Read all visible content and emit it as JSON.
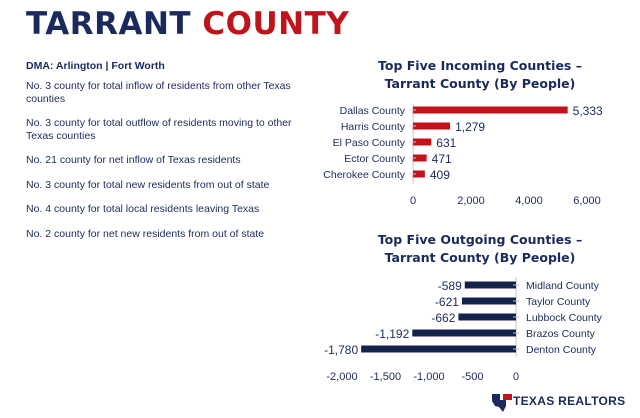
{
  "header": {
    "title_part1": "TARRANT",
    "title_part2": "COUNTY"
  },
  "facts": {
    "dma": "DMA: Arlington | Fort Worth",
    "items": [
      "No. 3 county for total inflow of residents from other Texas counties",
      "No. 3 county for total outflow of residents moving to other Texas counties",
      "No. 21 county for net inflow of Texas residents",
      "No. 3 county for total new residents from out of state",
      "No. 4 county for total local residents leaving Texas",
      "No. 2 county for net new residents from out of state"
    ]
  },
  "chart_data": [
    {
      "type": "bar",
      "orientation": "horizontal",
      "title_line1": "Top Five Incoming Counties –",
      "title_line2": "Tarrant County (By People)",
      "categories": [
        "Dallas County",
        "Harris County",
        "El Paso County",
        "Ector County",
        "Cherokee County"
      ],
      "values": [
        5333,
        1279,
        631,
        471,
        409
      ],
      "value_labels": [
        "5,333",
        "1,279",
        "631",
        "471",
        "409"
      ],
      "xlim": [
        0,
        6000
      ],
      "ticks": [
        0,
        2000,
        4000,
        6000
      ],
      "tick_labels": [
        "0",
        "2,000",
        "4,000",
        "6,000"
      ],
      "color": "#c0141b",
      "grid": false
    },
    {
      "type": "bar",
      "orientation": "horizontal",
      "title_line1": "Top Five Outgoing Counties –",
      "title_line2": "Tarrant County (By People)",
      "categories": [
        "Midland County",
        "Taylor County",
        "Lubbock County",
        "Brazos County",
        "Denton County"
      ],
      "values": [
        -589,
        -621,
        -662,
        -1192,
        -1780
      ],
      "value_labels": [
        "-589",
        "-621",
        "-662",
        "-1,192",
        "-1,780"
      ],
      "xlim": [
        -2000,
        0
      ],
      "ticks": [
        -2000,
        -1500,
        -1000,
        -500,
        0
      ],
      "tick_labels": [
        "-2,000",
        "-1,500",
        "-1,000",
        "-500",
        "0"
      ],
      "color": "#14214d",
      "grid": false
    }
  ],
  "footer": {
    "text": "TEXAS REALTORS"
  },
  "colors": {
    "navy": "#1b2a5c",
    "red": "#c0141b"
  }
}
